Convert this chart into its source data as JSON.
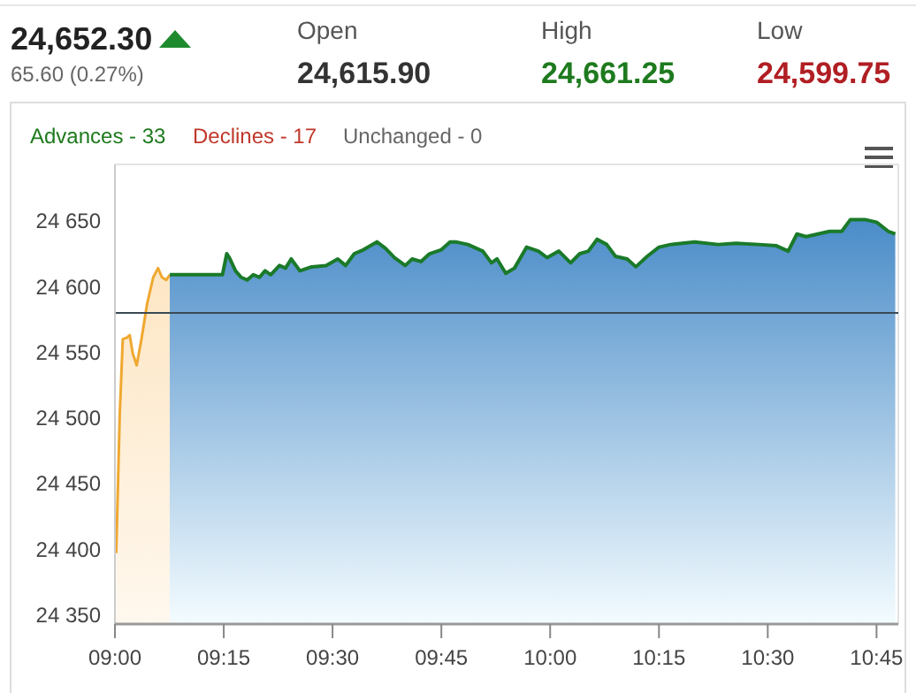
{
  "chart_data": {
    "type": "area",
    "title": "24,652.30",
    "subtitle": "65.60 (0.27%)",
    "annotations": [
      "Open",
      "24,615.90",
      "High",
      "24,661.25",
      "Low",
      "24,599.75",
      "Advances - 33",
      "Declines - 17",
      "Unchanged - 0"
    ],
    "xlim": [
      9,
      10.8
    ],
    "xticks": [
      {
        "value": 9,
        "label": "09:00"
      },
      {
        "value": 9.25,
        "label": "09:15"
      },
      {
        "value": 9.5,
        "label": "09:30"
      },
      {
        "value": 9.75,
        "label": "09:45"
      },
      {
        "value": 10,
        "label": "10:00"
      },
      {
        "value": 10.25,
        "label": "10:15"
      },
      {
        "value": 10.5,
        "label": "10:30"
      },
      {
        "value": 10.75,
        "label": "10:45"
      }
    ],
    "ylim": [
      24343,
      24693
    ],
    "yticks": [
      {
        "value": 24350,
        "label": "24 350"
      },
      {
        "value": 24400,
        "label": "24 400"
      },
      {
        "value": 24450,
        "label": "24 450"
      },
      {
        "value": 24500,
        "label": "24 500"
      },
      {
        "value": 24550,
        "label": "24 550"
      },
      {
        "value": 24600,
        "label": "24 600"
      },
      {
        "value": 24650,
        "label": "24 650"
      }
    ],
    "grid": false,
    "ref_lines": [
      {
        "axis": "y",
        "value": 24580,
        "color": "#3a4a55"
      }
    ],
    "series": [
      {
        "color": "#f0a830",
        "x": [
          9.003,
          9.011,
          9.018,
          9.027,
          9.034,
          9.041,
          9.05,
          9.061,
          9.074,
          9.088,
          9.099,
          9.108,
          9.118,
          9.126
        ],
        "values": [
          24397,
          24502,
          24560,
          24561,
          24563,
          24549,
          24540,
          24560,
          24587,
          24607,
          24614,
          24607,
          24605,
          24609
        ]
      },
      {
        "color": "#1a7a2a",
        "x": [
          9.126,
          9.247,
          9.257,
          9.263,
          9.277,
          9.29,
          9.304,
          9.318,
          9.332,
          9.345,
          9.358,
          9.378,
          9.392,
          9.405,
          9.425,
          9.452,
          9.485,
          9.512,
          9.53,
          9.55,
          9.571,
          9.602,
          9.622,
          9.642,
          9.667,
          9.683,
          9.703,
          9.723,
          9.75,
          9.77,
          9.783,
          9.811,
          9.845,
          9.865,
          9.878,
          9.898,
          9.918,
          9.946,
          9.973,
          9.993,
          10.02,
          10.047,
          10.068,
          10.088,
          10.108,
          10.13,
          10.15,
          10.177,
          10.197,
          10.223,
          10.25,
          10.277,
          10.332,
          10.386,
          10.427,
          10.48,
          10.52,
          10.547,
          10.567,
          10.588,
          10.615,
          10.642,
          10.67,
          10.69,
          10.723,
          10.75,
          10.777,
          10.793
        ],
        "values": [
          24609,
          24609,
          24625,
          24622,
          24612,
          24607,
          24605,
          24609,
          24607,
          24612,
          24609,
          24616,
          24614,
          24621,
          24612,
          24615,
          24616,
          24621,
          24616,
          24625,
          24628,
          24634,
          24629,
          24622,
          24616,
          24621,
          24619,
          24625,
          24628,
          24634,
          24634,
          24632,
          24627,
          24618,
          24621,
          24610,
          24614,
          24630,
          24627,
          24622,
          24627,
          24618,
          24625,
          24627,
          24636,
          24632,
          24623,
          24621,
          24615,
          24623,
          24630,
          24632,
          24634,
          24632,
          24633,
          24632,
          24631,
          24627,
          24640,
          24638,
          24640,
          24642,
          24642,
          24651,
          24651,
          24649,
          24642,
          24640
        ]
      }
    ]
  }
}
